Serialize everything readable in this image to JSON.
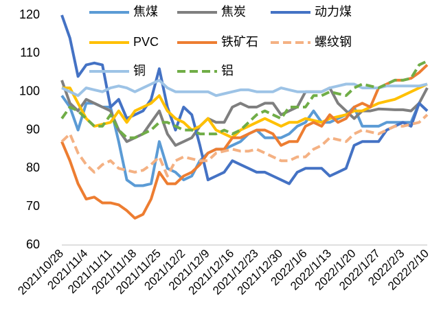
{
  "chart_data": {
    "type": "line",
    "categories": [
      "2021/10/28",
      null,
      null,
      "2021/11/4",
      null,
      null,
      "2021/11/11",
      null,
      null,
      "2021/11/18",
      null,
      null,
      "2021/11/25",
      null,
      null,
      "2021/12/2",
      null,
      null,
      "2021/12/9",
      null,
      null,
      "2021/12/16",
      null,
      null,
      "2021/12/23",
      null,
      null,
      "2021/12/30",
      null,
      null,
      "2022/1/6",
      null,
      null,
      "2022/1/13",
      null,
      null,
      "2022/1/20",
      null,
      null,
      "2022/1/27",
      null,
      null,
      "2022/2/3",
      null,
      null,
      "2022/2/10"
    ],
    "series": [
      {
        "name": "焦煤",
        "color": "#5b9bd5",
        "dashed": false,
        "values": [
          99,
          96,
          90,
          97,
          97,
          96,
          96,
          87,
          77,
          75.5,
          75.5,
          76,
          87,
          80,
          79,
          77,
          78,
          82,
          84,
          85,
          85,
          86,
          87,
          89,
          90,
          88,
          88,
          88,
          89,
          91,
          92,
          95,
          92,
          92,
          93,
          94,
          96,
          91,
          91,
          91,
          92,
          92,
          92,
          92,
          97,
          95
        ]
      },
      {
        "name": "焦炭",
        "color": "#7f7f7f",
        "dashed": false,
        "values": [
          103,
          97,
          95,
          98,
          97,
          96,
          95,
          90,
          87,
          88,
          89,
          92,
          95,
          89,
          86,
          87,
          88,
          91,
          93,
          92,
          92,
          96,
          97,
          96,
          96,
          97,
          97,
          94,
          95,
          96,
          100,
          100,
          100,
          101,
          97,
          95,
          93,
          95,
          95,
          95.5,
          95.4,
          95.3,
          95.3,
          95,
          97,
          101
        ]
      },
      {
        "name": "动力煤",
        "color": "#4472c4",
        "dashed": false,
        "values": [
          120,
          114,
          104,
          107,
          107.5,
          107,
          96,
          98,
          93,
          94,
          95,
          98,
          106,
          96,
          90,
          96,
          94,
          86,
          77,
          78,
          79,
          82,
          81,
          80,
          79,
          79,
          78,
          77,
          76,
          79,
          80,
          80,
          80,
          78,
          79,
          80,
          86,
          87,
          87,
          87,
          90,
          91,
          92,
          91,
          97,
          95
        ]
      },
      {
        "name": "PVC",
        "color": "#ffc000",
        "dashed": false,
        "values": [
          101,
          101,
          97,
          93,
          91,
          91.5,
          92,
          95,
          92,
          95,
          96,
          97,
          99,
          95,
          93,
          92,
          90,
          91,
          93,
          90,
          89,
          88,
          90,
          91,
          92,
          93,
          92,
          91,
          92,
          92,
          93,
          92.5,
          92,
          93,
          93.5,
          94,
          95,
          95,
          96,
          97,
          97.5,
          98,
          99,
          100,
          101,
          102
        ]
      },
      {
        "name": "铁矿石",
        "color": "#ed7d31",
        "dashed": false,
        "values": [
          87,
          82,
          76,
          72,
          72.5,
          71,
          71,
          70.5,
          69,
          67,
          68,
          72,
          79,
          76,
          76,
          78,
          79,
          81,
          84,
          85,
          85,
          88,
          88,
          89,
          90,
          90,
          89,
          86,
          87,
          87,
          91,
          92,
          91,
          94,
          92,
          93,
          96,
          97,
          96,
          101,
          102,
          103,
          103,
          103.5,
          105,
          107
        ]
      },
      {
        "name": "螺纹钢",
        "color": "#f4b183",
        "dashed": true,
        "values": [
          87,
          89,
          84,
          81,
          79,
          81,
          82,
          80,
          79.5,
          79,
          79.5,
          81,
          83,
          78,
          82,
          83,
          82.5,
          82,
          82,
          84,
          84.5,
          85,
          84.5,
          84.5,
          85,
          84,
          83,
          82,
          82,
          83,
          83,
          85,
          86,
          88,
          87.5,
          87,
          89,
          90,
          89.5,
          89,
          90,
          91,
          91,
          91.5,
          92,
          94
        ]
      },
      {
        "name": "铜",
        "color": "#9dc3e6",
        "dashed": false,
        "values": [
          101,
          100,
          99,
          101,
          100.5,
          100,
          101,
          101.5,
          101,
          100,
          101,
          102,
          103,
          101,
          100,
          100,
          100,
          100,
          100,
          99,
          99.5,
          100,
          100.5,
          100.5,
          100,
          100,
          100,
          101,
          100.5,
          100,
          100,
          100,
          100,
          101,
          101.5,
          102,
          102,
          101,
          101,
          101,
          101.5,
          101.5,
          101.5,
          101.5,
          101.5,
          102
        ]
      },
      {
        "name": "铝",
        "color": "#70ad47",
        "dashed": true,
        "values": [
          93,
          96,
          95,
          93,
          91,
          91,
          94,
          90,
          88,
          88,
          89,
          90,
          92,
          92,
          91,
          90,
          90,
          89,
          89,
          89,
          90,
          89,
          90,
          92,
          94,
          95,
          94,
          93,
          96,
          96,
          96,
          99,
          99,
          100,
          99.5,
          99,
          101,
          102,
          101.5,
          101,
          102,
          103,
          103,
          103.5,
          107,
          108
        ]
      }
    ],
    "ylim": [
      60,
      120
    ],
    "yticks": [
      60,
      70,
      80,
      90,
      100,
      110,
      120
    ],
    "grid": false,
    "legend": "top"
  }
}
